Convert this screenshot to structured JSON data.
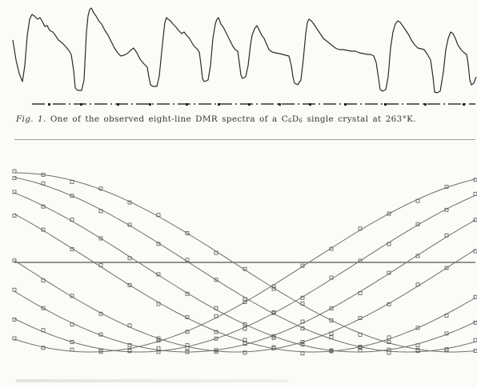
{
  "figure1": {
    "number": "Fig. 1.",
    "caption_prefix": "One of the observed eight-line DMR spectra of a C",
    "sub1": "6",
    "caption_mid": "D",
    "sub2": "6",
    "caption_suffix": " single crystal at 263°K.",
    "colors": {
      "trace": "#2b2b2b",
      "baseline": "#333333"
    }
  },
  "figure2": {
    "colors": {
      "curve": "#6e6e6e",
      "point": "#555555",
      "axis": "#555555"
    }
  }
}
